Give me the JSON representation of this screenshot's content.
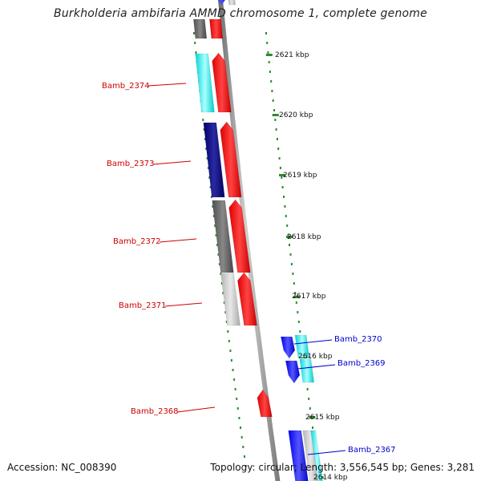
{
  "title": "Burkholderia ambifaria AMMD chromosome 1, complete genome",
  "footer": {
    "accession": "Accession: NC_008390",
    "topology": "Topology: circular; Length: 3,556,545 bp; Genes: 3,281"
  },
  "ticks": [
    "2621 kbp",
    "2620 kbp",
    "2619 kbp",
    "2618 kbp",
    "2617 kbp",
    "2616 kbp",
    "2615 kbp",
    "2614 kbp"
  ],
  "gene_labels": [
    {
      "text": "Bamb_2374",
      "color": "#cc0000"
    },
    {
      "text": "Bamb_2373",
      "color": "#cc0000"
    },
    {
      "text": "Bamb_2372",
      "color": "#cc0000"
    },
    {
      "text": "Bamb_2371",
      "color": "#cc0000"
    },
    {
      "text": "Bamb_2368",
      "color": "#cc0000"
    },
    {
      "text": "Bamb_2370",
      "color": "#0000cc"
    },
    {
      "text": "Bamb_2369",
      "color": "#0000cc"
    },
    {
      "text": "Bamb_2367",
      "color": "#0000cc"
    }
  ],
  "colors": {
    "backbone": "#8a8a8a",
    "tick_mark": "#2e8b2e",
    "strand_red": "#ff0000",
    "strand_blue": "#0000ff",
    "cyan": "#00e5e5",
    "navy": "#000080",
    "dark_gray": "#555555",
    "light_gray": "#c8c8c8"
  }
}
